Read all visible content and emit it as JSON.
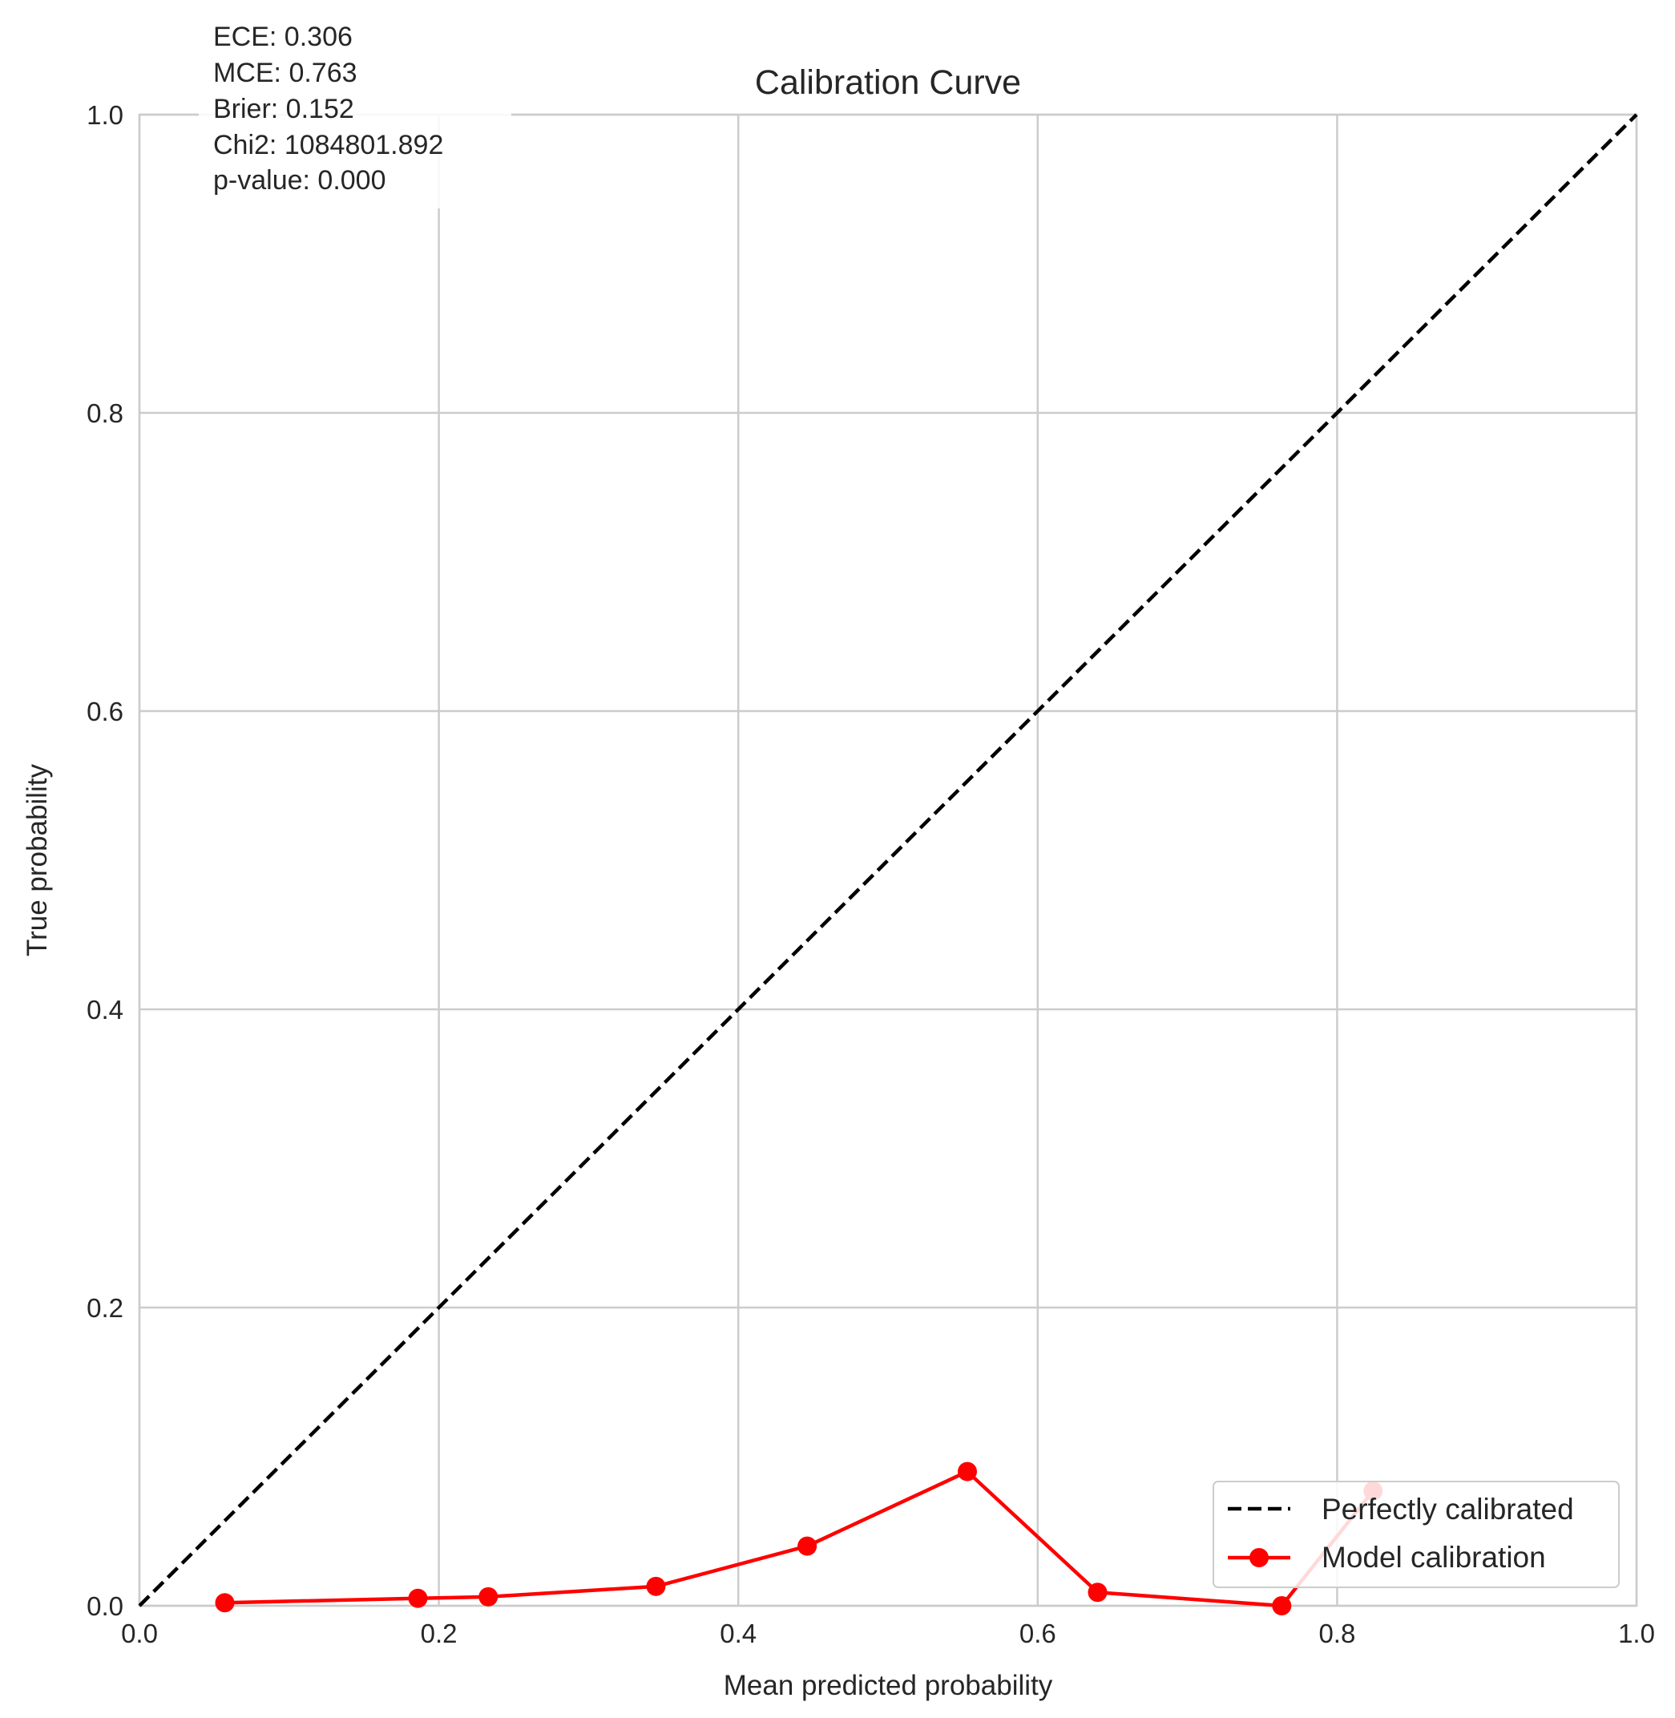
{
  "chart_data": {
    "type": "line",
    "title": "Calibration Curve",
    "xlabel": "Mean predicted probability",
    "ylabel": "True probability",
    "xlim": [
      0.0,
      1.0
    ],
    "ylim": [
      0.0,
      1.0
    ],
    "x_ticks": [
      "0.0",
      "0.2",
      "0.4",
      "0.6",
      "0.8",
      "1.0"
    ],
    "y_ticks": [
      "0.0",
      "0.2",
      "0.4",
      "0.6",
      "0.8",
      "1.0"
    ],
    "grid": true,
    "legend_position": "lower-right",
    "series": [
      {
        "name": "Perfectly calibrated",
        "style": "dashed",
        "color": "#000000",
        "x": [
          0.0,
          1.0
        ],
        "y": [
          0.0,
          1.0
        ]
      },
      {
        "name": "Model calibration",
        "style": "solid-with-markers",
        "color": "#ff0000",
        "x": [
          0.057,
          0.186,
          0.233,
          0.345,
          0.446,
          0.553,
          0.64,
          0.763,
          0.824
        ],
        "y": [
          0.002,
          0.005,
          0.006,
          0.013,
          0.04,
          0.09,
          0.009,
          0.0,
          0.077
        ]
      }
    ],
    "annotations": [
      "ECE: 0.306",
      "MCE: 0.763",
      "Brier: 0.152",
      "Chi2: 1084801.892",
      "p-value: 0.000"
    ]
  }
}
